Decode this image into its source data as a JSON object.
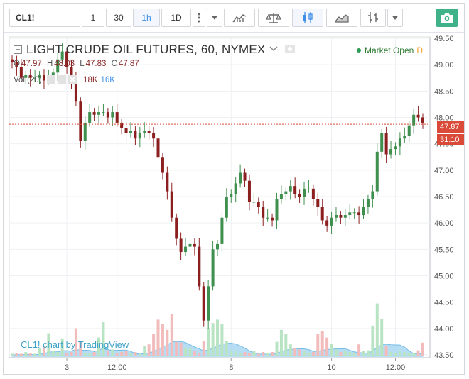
{
  "toolbar": {
    "symbol": "CL1!",
    "intervals": [
      "1",
      "30",
      "1h",
      "1D"
    ],
    "active_interval": "1h"
  },
  "legend": {
    "title": "LIGHT CRUDE OIL FUTURES, 60, NYMEX",
    "ohlc": [
      {
        "k": "O",
        "v": "47.97"
      },
      {
        "k": "H",
        "v": "48.03"
      },
      {
        "k": "L",
        "v": "47.83"
      },
      {
        "k": "C",
        "v": "47.87"
      }
    ],
    "vol_label": "Vol (20)",
    "vol_values": [
      "18K",
      "16K"
    ]
  },
  "market_status": {
    "text": "Market Open",
    "badge": "D"
  },
  "watermark": "CL1! chart by TradingView",
  "last_price": "47.87",
  "countdown": "31:10",
  "colors": {
    "up": "#3f8f4f",
    "down": "#8b1f1f",
    "vol_up": "#b9e4c3",
    "vol_down": "#f2bcbc",
    "vol_ma": "#9ed2ef",
    "price_line": "#d94a38"
  },
  "chart_data": {
    "type": "candlestick",
    "x_tick_labels": [
      "3",
      "12:00",
      "8",
      "10",
      "12:00"
    ],
    "y_axis": {
      "min": 43.5,
      "max": 49.5,
      "ticks": [
        49.5,
        49.0,
        48.5,
        48.0,
        47.5,
        47.0,
        46.5,
        46.0,
        45.5,
        45.0,
        44.5,
        44.0,
        43.5
      ]
    },
    "close_series": [
      49.05,
      48.95,
      48.75,
      48.8,
      48.75,
      48.75,
      48.8,
      48.7,
      48.75,
      48.85,
      49.1,
      49.25,
      48.95,
      48.7,
      48.3,
      47.55,
      47.9,
      48.1,
      48.05,
      48.1,
      48.1,
      48.0,
      48.1,
      47.9,
      47.8,
      47.7,
      47.75,
      47.6,
      47.7,
      47.75,
      47.7,
      47.6,
      47.25,
      46.95,
      46.6,
      46.1,
      45.7,
      45.45,
      45.55,
      45.6,
      45.55,
      44.8,
      44.15,
      44.8,
      45.5,
      45.6,
      46.1,
      46.5,
      46.55,
      46.75,
      46.95,
      46.8,
      46.4,
      46.4,
      46.3,
      46.1,
      46.1,
      46.05,
      46.45,
      46.55,
      46.6,
      46.7,
      46.55,
      46.5,
      46.65,
      46.65,
      46.45,
      46.3,
      46.05,
      45.95,
      46.1,
      46.15,
      46.1,
      46.15,
      46.2,
      46.2,
      46.15,
      46.3,
      46.45,
      46.6,
      47.35,
      47.7,
      47.3,
      47.4,
      47.45,
      47.6,
      47.65,
      47.85,
      48.05,
      48.0,
      47.9
    ],
    "volume_relative": [
      0.03,
      0.04,
      0.03,
      0.05,
      0.04,
      0.03,
      0.09,
      0.12,
      0.27,
      0.06,
      0.05,
      0.21,
      0.04,
      0.05,
      0.33,
      0.18,
      0.04,
      0.03,
      0.05,
      0.22,
      0.4,
      0.07,
      0.08,
      0.04,
      0.05,
      0.06,
      0.04,
      0.05,
      0.03,
      0.12,
      0.14,
      0.26,
      0.43,
      0.38,
      0.31,
      0.5,
      0.17,
      0.16,
      0.1,
      0.09,
      0.06,
      0.04,
      0.18,
      0.33,
      0.39,
      0.43,
      0.38,
      0.18,
      0.07,
      0.06,
      0.04,
      0.05,
      0.04,
      0.06,
      0.03,
      0.05,
      0.04,
      0.05,
      0.17,
      0.31,
      0.26,
      0.14,
      0.1,
      0.08,
      0.06,
      0.04,
      0.05,
      0.26,
      0.3,
      0.22,
      0.15,
      0.08,
      0.05,
      0.06,
      0.05,
      0.04,
      0.14,
      0.06,
      0.07,
      0.36,
      0.62,
      0.44,
      0.12,
      0.05,
      0.04,
      0.06,
      0.05,
      0.04,
      0.04,
      0.07,
      0.16
    ]
  }
}
